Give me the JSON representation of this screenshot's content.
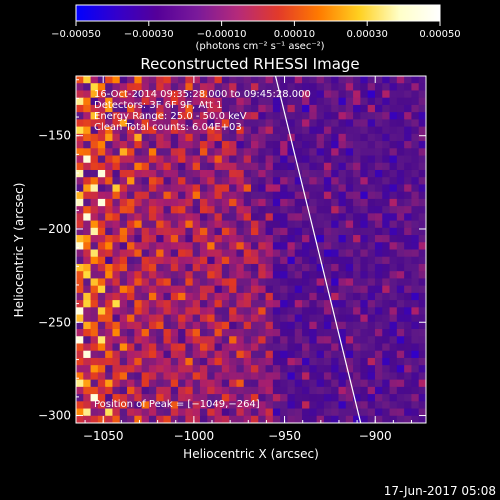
{
  "chart_data": {
    "type": "heatmap",
    "title": "Reconstructed RHESSI Image",
    "xlabel": "Heliocentric X (arcsec)",
    "ylabel": "Heliocentric Y (arcsec)",
    "xlim": [
      -1065,
      -872
    ],
    "ylim": [
      -304,
      -118
    ],
    "x_ticks": [
      -1050,
      -1000,
      -950,
      -900
    ],
    "y_ticks": [
      -150,
      -200,
      -250,
      -300
    ],
    "x_tick_labels": [
      "−1050",
      "−1000",
      "−950",
      "−900"
    ],
    "y_tick_labels": [
      "−150",
      "−200",
      "−250",
      "−300"
    ],
    "colorbar": {
      "range": [
        -0.0005,
        0.0005
      ],
      "ticks": [
        -0.0005,
        -0.0003,
        -0.0001,
        0.0001,
        0.0003,
        0.0005
      ],
      "tick_labels": [
        "−0.00050",
        "−0.00030",
        "−0.00010",
        "0.00010",
        "0.00030",
        "0.00050"
      ],
      "unit_label": "(photons cm⁻² s⁻¹ asec⁻²)",
      "colors": [
        "#0000ff",
        "#3300cc",
        "#550099",
        "#7a1a9a",
        "#b52a7a",
        "#e23a2a",
        "#ff7a00",
        "#ffd020",
        "#ffffc8",
        "#ffffff"
      ]
    },
    "annotations": [
      "16-Oct-2014 09:35:28.000 to 09:45:28.000",
      "Detectors: 3F 6F 9F, Att 1",
      "Energy Range: 25.0 - 50.0 keV",
      "Clean     Total counts: 6.04E+03",
      "Position of Peak = [−1049,−264]"
    ],
    "limb_line": {
      "x": [
        -955,
        -908
      ],
      "y": [
        -118,
        -304
      ]
    },
    "peak": {
      "x": -1049,
      "y": -264
    },
    "grid": false
  },
  "footer": {
    "timestamp": "17-Jun-2017 05:08"
  }
}
